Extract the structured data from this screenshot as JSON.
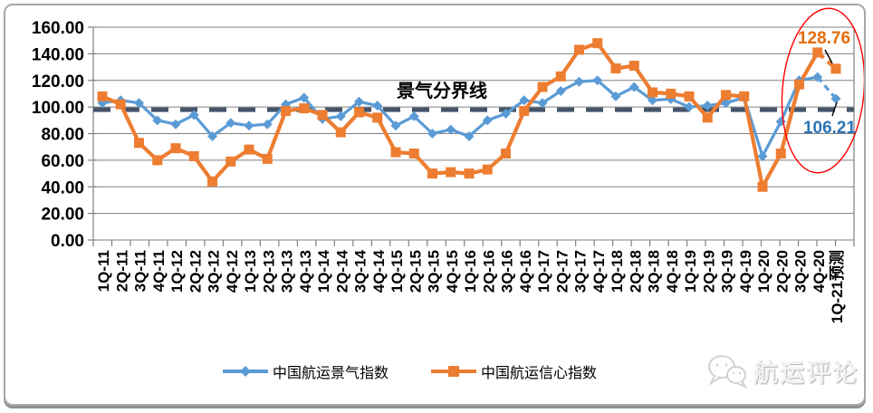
{
  "chart_data": {
    "type": "line",
    "categories": [
      "1Q-11",
      "2Q-11",
      "3Q-11",
      "4Q-11",
      "1Q-12",
      "2Q-12",
      "3Q-12",
      "4Q-12",
      "1Q-13",
      "2Q-13",
      "3Q-13",
      "4Q-13",
      "1Q-14",
      "2Q-14",
      "3Q-14",
      "4Q-14",
      "1Q-15",
      "2Q-15",
      "3Q-15",
      "4Q-15",
      "1Q-16",
      "2Q-16",
      "3Q-16",
      "4Q-16",
      "1Q-17",
      "2Q-17",
      "3Q-17",
      "4Q-17",
      "1Q-18",
      "2Q-18",
      "3Q-18",
      "4Q-18",
      "1Q-19",
      "2Q-19",
      "3Q-19",
      "4Q-19",
      "1Q-20",
      "2Q-20",
      "3Q-20",
      "4Q-20",
      "1Q-21预测"
    ],
    "series": [
      {
        "name": "中国航运景气指数",
        "color": "#5B9BD5",
        "marker": "diamond",
        "values": [
          103,
          105,
          103,
          90,
          87,
          94,
          78,
          88,
          86,
          87,
          102,
          107,
          91,
          93,
          104,
          101,
          86,
          93,
          80,
          83,
          78,
          90,
          95,
          105,
          103,
          112,
          119,
          120,
          108,
          115,
          105,
          106,
          100,
          101,
          103,
          107,
          63,
          89,
          120,
          122.5,
          106.21
        ]
      },
      {
        "name": "中国航运信心指数",
        "color": "#ED7D31",
        "marker": "square",
        "values": [
          108,
          102,
          73,
          60,
          69,
          63,
          44,
          59,
          68,
          61,
          97,
          99,
          94,
          81,
          96,
          92,
          66,
          65,
          50,
          51,
          50,
          53,
          65,
          97,
          115,
          123,
          143,
          148,
          129,
          131,
          111,
          110,
          108,
          92,
          109,
          108,
          40,
          65,
          117,
          141,
          128.76
        ]
      }
    ],
    "threshold": {
      "label": "景气分界线",
      "value": 100,
      "color": "#44546A"
    },
    "ylim": [
      0,
      160
    ],
    "ytick_step": 20,
    "ytick_labels": [
      "0.00",
      "20.00",
      "40.00",
      "60.00",
      "80.00",
      "100.00",
      "120.00",
      "140.00",
      "160.00"
    ],
    "grid": true,
    "legend_position": "bottom",
    "forecast_last_segment_dashed": true,
    "annotations": [
      {
        "text": "128.76",
        "color": "#E36C0A",
        "series": "中国航运信心指数",
        "point": "1Q-21预测"
      },
      {
        "text": "106.21",
        "color": "#2E75B6",
        "series": "中国航运景气指数",
        "point": "1Q-21预测"
      }
    ],
    "highlight_ellipse": {
      "color": "#FF0000",
      "around": "last two quarters"
    }
  },
  "legend": {
    "items": [
      {
        "label": "中国航运景气指数"
      },
      {
        "label": "中国航运信心指数"
      }
    ]
  },
  "watermark": {
    "text": "航运评论"
  }
}
